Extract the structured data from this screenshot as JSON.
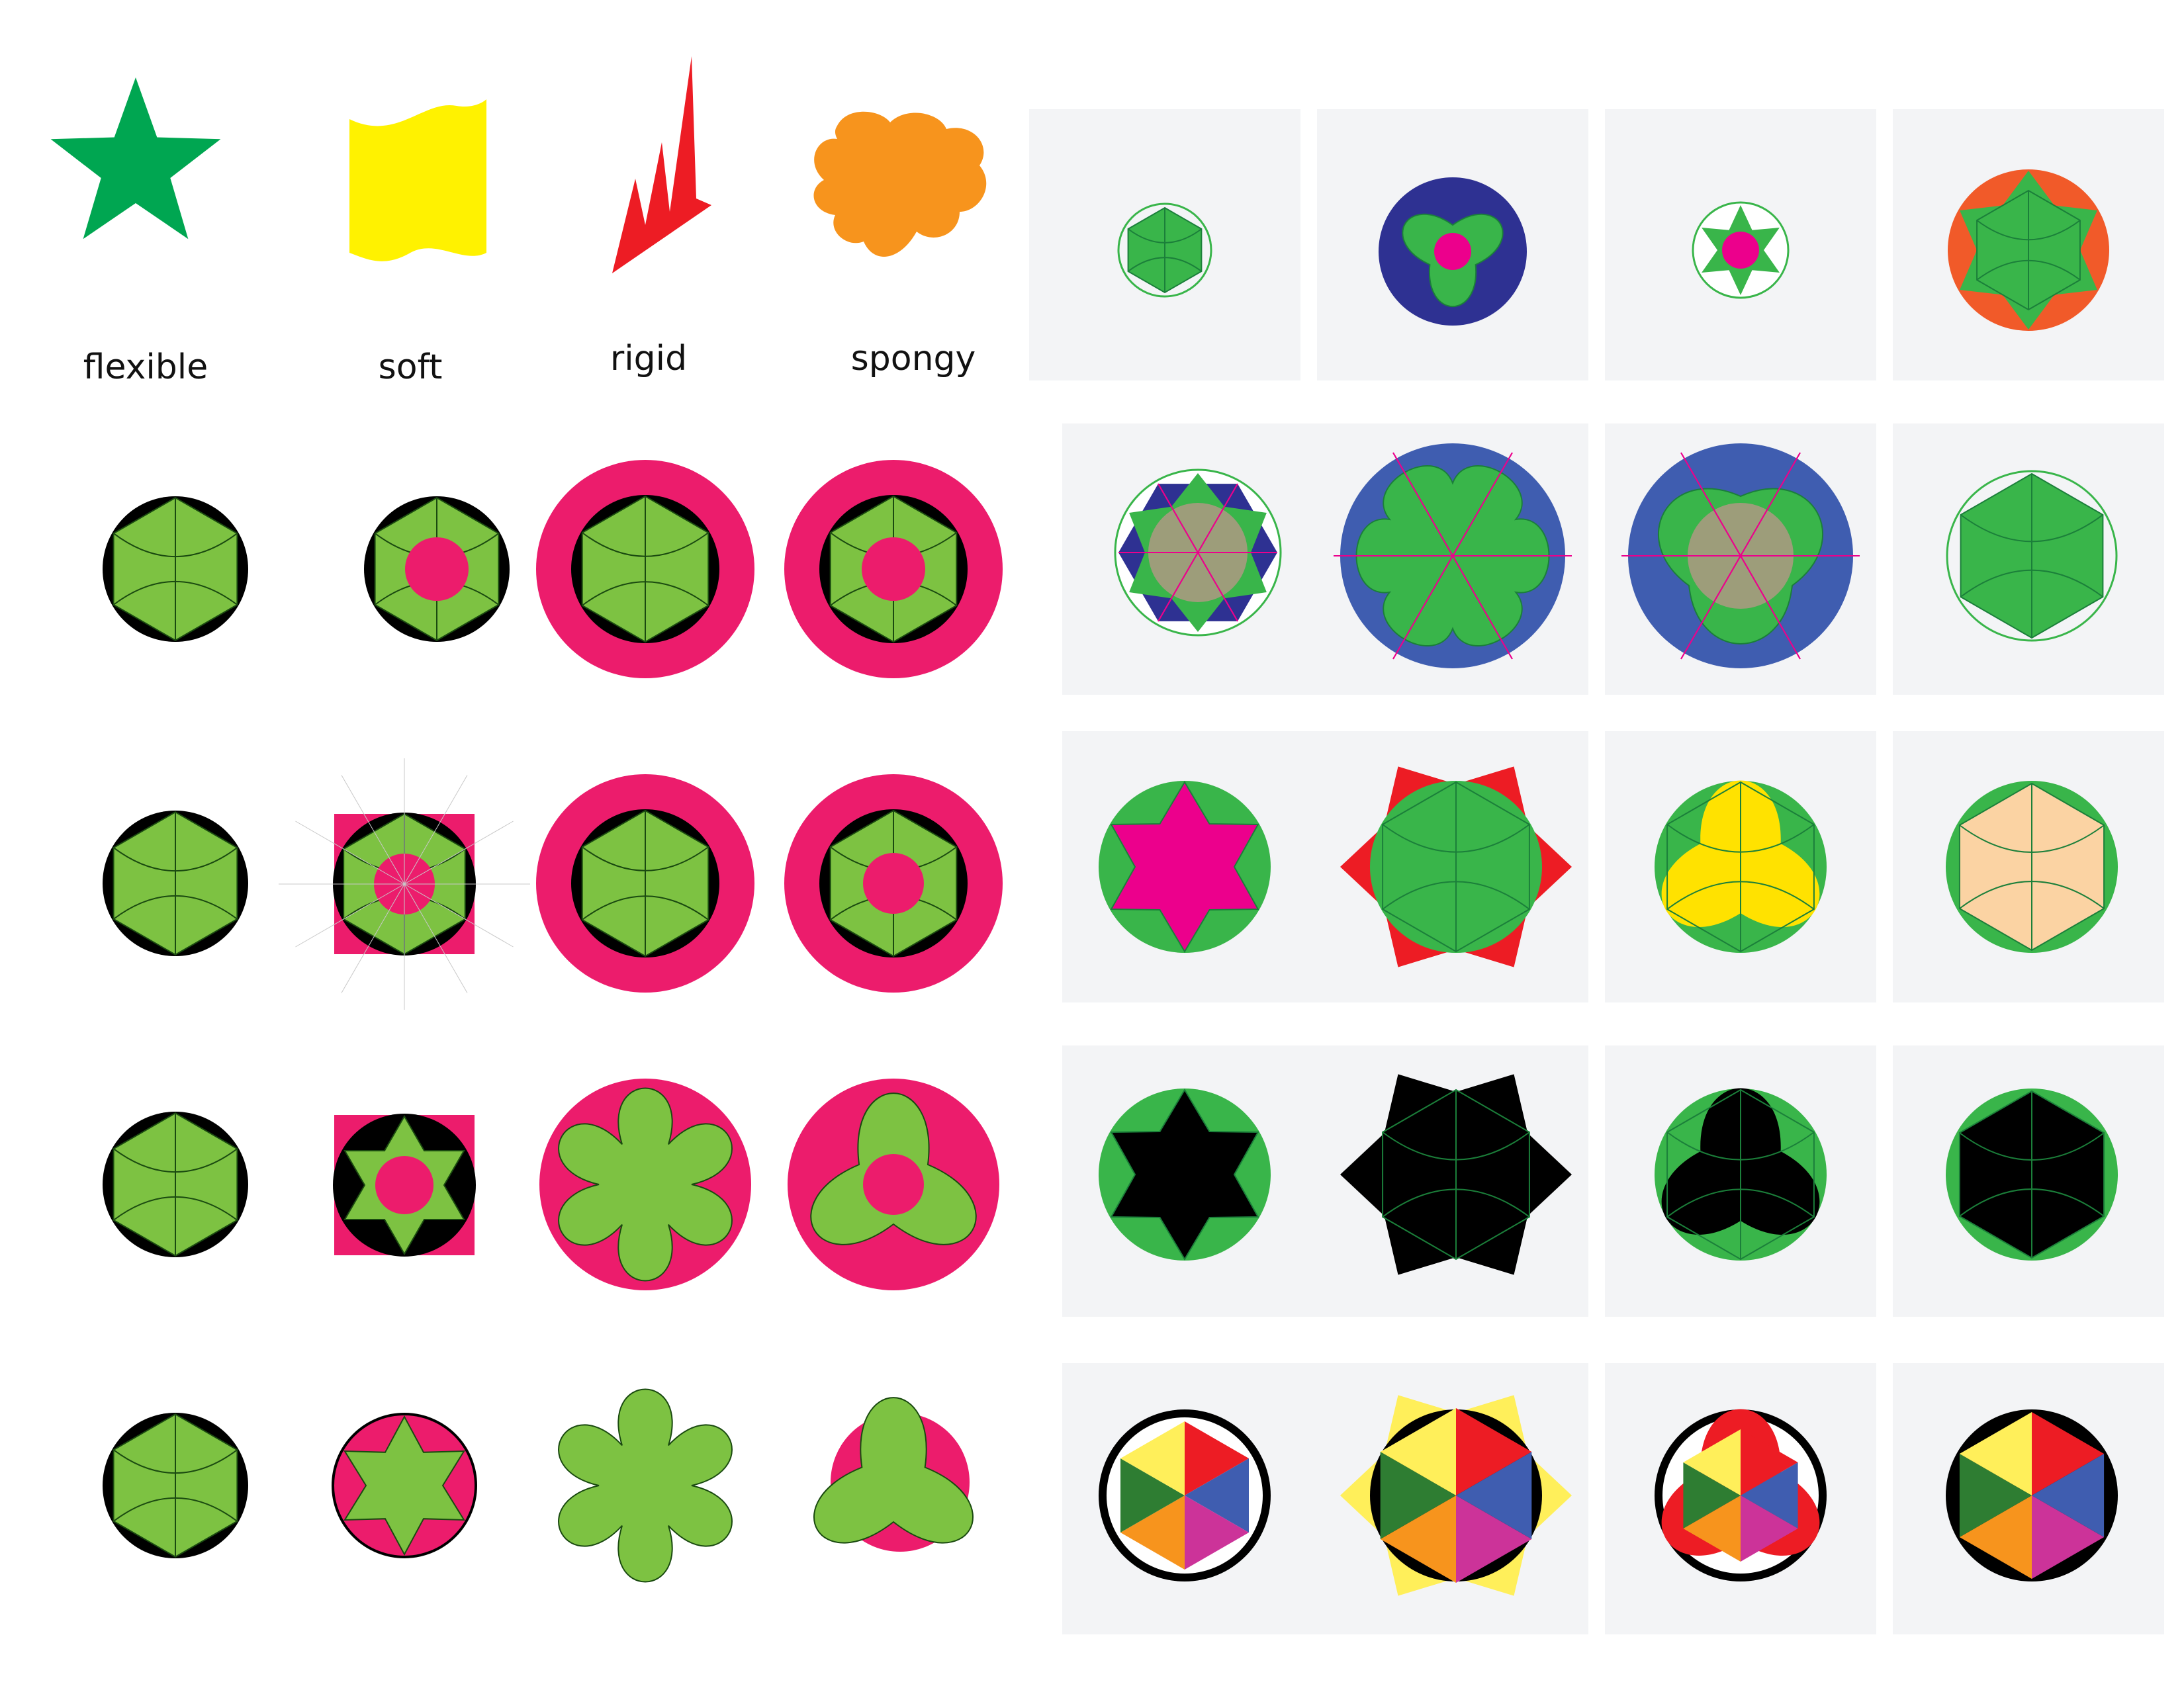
{
  "labels": [
    "flexible",
    "soft",
    "rigid",
    "spongy"
  ],
  "colors": {
    "lime": "#7dc242",
    "green": "#39b54a",
    "star_green": "#00a651",
    "yellow": "#fff200",
    "red": "#ed1c24",
    "orange": "#f7941d",
    "pink": "#ec1c6c",
    "magenta": "#ec008c",
    "navy": "#2e3192",
    "blue": "#3f5db0",
    "orange_red": "#f15a29",
    "gold": "#ffe200",
    "peach": "#fbd3a3",
    "black": "#000000",
    "panel": "#f3f4f6",
    "tan": "#a89a80"
  }
}
